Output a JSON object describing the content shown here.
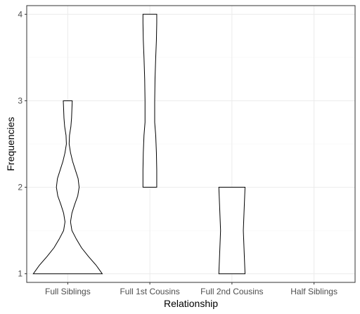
{
  "chart_data": {
    "type": "violin",
    "xlabel": "Relationship",
    "ylabel": "Frequencies",
    "categories": [
      "Full Siblings",
      "Full 1st Cousins",
      "Full 2nd Cousins",
      "Half Siblings"
    ],
    "ylim": [
      0.9,
      4.1
    ],
    "yticks": [
      1,
      2,
      3,
      4
    ],
    "grid": true,
    "theme": "bw",
    "violins": [
      {
        "category": "Full Siblings",
        "range": [
          1,
          3
        ],
        "density": [
          [
            1.0,
            1.0
          ],
          [
            1.1,
            0.82
          ],
          [
            1.2,
            0.6
          ],
          [
            1.3,
            0.4
          ],
          [
            1.4,
            0.25
          ],
          [
            1.5,
            0.12
          ],
          [
            1.6,
            0.08
          ],
          [
            1.7,
            0.12
          ],
          [
            1.8,
            0.2
          ],
          [
            1.9,
            0.29
          ],
          [
            2.0,
            0.33
          ],
          [
            2.1,
            0.3
          ],
          [
            2.2,
            0.22
          ],
          [
            2.3,
            0.14
          ],
          [
            2.4,
            0.08
          ],
          [
            2.5,
            0.04
          ],
          [
            2.6,
            0.05
          ],
          [
            2.7,
            0.09
          ],
          [
            2.8,
            0.11
          ],
          [
            2.9,
            0.12
          ],
          [
            3.0,
            0.13
          ]
        ]
      },
      {
        "category": "Full 1st Cousins",
        "range": [
          2,
          4
        ],
        "density": [
          [
            2.0,
            0.2
          ],
          [
            2.2,
            0.2
          ],
          [
            2.4,
            0.19
          ],
          [
            2.6,
            0.17
          ],
          [
            2.75,
            0.14
          ],
          [
            3.0,
            0.14
          ],
          [
            3.25,
            0.15
          ],
          [
            3.5,
            0.17
          ],
          [
            3.7,
            0.19
          ],
          [
            3.9,
            0.2
          ],
          [
            4.0,
            0.2
          ]
        ]
      },
      {
        "category": "Full 2nd Cousins",
        "range": [
          1,
          2
        ],
        "density": [
          [
            1.0,
            0.38
          ],
          [
            1.1,
            0.37
          ],
          [
            1.2,
            0.36
          ],
          [
            1.3,
            0.35
          ],
          [
            1.4,
            0.34
          ],
          [
            1.5,
            0.33
          ],
          [
            1.6,
            0.34
          ],
          [
            1.7,
            0.35
          ],
          [
            1.8,
            0.36
          ],
          [
            1.9,
            0.37
          ],
          [
            2.0,
            0.38
          ]
        ]
      },
      {
        "category": "Half Siblings",
        "range": [],
        "density": []
      }
    ]
  }
}
